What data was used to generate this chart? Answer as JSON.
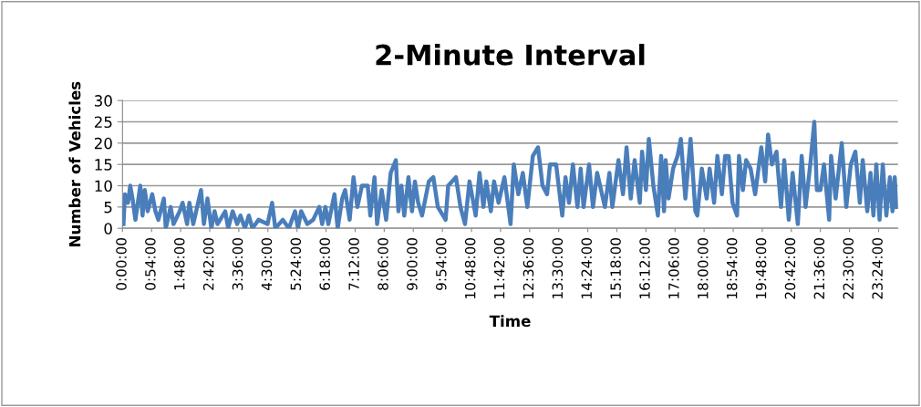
{
  "chart_data": {
    "type": "line",
    "title": "2-Minute Interval",
    "xlabel": "Time",
    "ylabel": "Number of Vehicles",
    "x": [
      0.03,
      0.075,
      0.17,
      0.24,
      0.31,
      0.4,
      0.55,
      0.62,
      0.69,
      0.78,
      0.92,
      1.02,
      1.11,
      1.28,
      1.34,
      1.49,
      1.58,
      1.77,
      1.86,
      2.0,
      2.07,
      2.19,
      2.43,
      2.52,
      2.63,
      2.75,
      2.85,
      2.94,
      3.18,
      3.27,
      3.41,
      3.55,
      3.65,
      3.79,
      3.91,
      4.02,
      4.21,
      4.49,
      4.63,
      4.73,
      4.96,
      5.15,
      5.34,
      5.43,
      5.53,
      5.72,
      5.9,
      6.09,
      6.18,
      6.28,
      6.37,
      6.56,
      6.66,
      6.8,
      6.89,
      7.03,
      7.15,
      7.27,
      7.41,
      7.59,
      7.67,
      7.8,
      7.88,
      8.02,
      8.16,
      8.3,
      8.46,
      8.54,
      8.63,
      8.72,
      8.85,
      8.96,
      9.05,
      9.15,
      9.27,
      9.48,
      9.62,
      9.76,
      10.0,
      10.08,
      10.32,
      10.46,
      10.6,
      10.74,
      10.93,
      11.05,
      11.17,
      11.26,
      11.4,
      11.5,
      11.64,
      11.82,
      12.01,
      12.11,
      12.25,
      12.39,
      12.53,
      12.7,
      12.86,
      13.0,
      13.14,
      13.23,
      13.42,
      13.61,
      13.71,
      13.82,
      13.94,
      14.08,
      14.18,
      14.27,
      14.44,
      14.56,
      14.69,
      14.93,
      15.07,
      15.16,
      15.35,
      15.49,
      15.6,
      15.73,
      15.85,
      15.96,
      16.01,
      16.08,
      16.2,
      16.29,
      16.43,
      16.57,
      16.67,
      16.76,
      16.81,
      16.9,
      17.04,
      17.18,
      17.28,
      17.42,
      17.58,
      17.73,
      17.79,
      17.93,
      18.08,
      18.17,
      18.31,
      18.41,
      18.55,
      18.65,
      18.76,
      18.88,
      19.02,
      19.08,
      19.2,
      19.3,
      19.44,
      19.58,
      19.77,
      19.89,
      19.98,
      20.1,
      20.24,
      20.38,
      20.48,
      20.62,
      20.74,
      20.9,
      21.02,
      21.14,
      21.3,
      21.41,
      21.49,
      21.6,
      21.71,
      21.87,
      21.93,
      22.07,
      22.26,
      22.4,
      22.54,
      22.68,
      22.82,
      22.91,
      23.05,
      23.15,
      23.24,
      23.33,
      23.43,
      23.53,
      23.64,
      23.75,
      23.83,
      23.9,
      23.95
    ],
    "series": [
      {
        "color": "#4a7ebb",
        "values": [
          1,
          8,
          6,
          10,
          7,
          2,
          10,
          3,
          9,
          4,
          8,
          4,
          2,
          7,
          0,
          5,
          1,
          4,
          6,
          1,
          6,
          1,
          9,
          1,
          7,
          0,
          4,
          1,
          4,
          0,
          4,
          1,
          3,
          0,
          3,
          0,
          2,
          1,
          6,
          0,
          2,
          0,
          4,
          0,
          4,
          1,
          2,
          5,
          1,
          5,
          1,
          8,
          0,
          7,
          9,
          2,
          12,
          5,
          10,
          10,
          3,
          12,
          1,
          9,
          2,
          13,
          16,
          4,
          10,
          3,
          12,
          4,
          11,
          6,
          3,
          11,
          12,
          5,
          2,
          10,
          12,
          5,
          1,
          11,
          3,
          13,
          5,
          11,
          4,
          11,
          6,
          12,
          1,
          15,
          8,
          13,
          5,
          17,
          19,
          10,
          8,
          15,
          15,
          3,
          12,
          6,
          15,
          5,
          14,
          5,
          15,
          5,
          13,
          5,
          13,
          5,
          16,
          8,
          19,
          7,
          16,
          9,
          6,
          18,
          9,
          21,
          10,
          3,
          17,
          4,
          16,
          7,
          14,
          17,
          21,
          7,
          21,
          4,
          3,
          14,
          7,
          14,
          6,
          17,
          8,
          17,
          17,
          6,
          3,
          17,
          9,
          16,
          14,
          8,
          19,
          11,
          22,
          15,
          18,
          5,
          16,
          2,
          13,
          1,
          17,
          5,
          16,
          25,
          9,
          9,
          15,
          2,
          17,
          7,
          20,
          5,
          15,
          18,
          6,
          16,
          4,
          13,
          3,
          15,
          2,
          15,
          3,
          12,
          4,
          12,
          5
        ]
      }
    ],
    "xlim": [
      0,
      24
    ],
    "ylim": [
      0,
      30
    ],
    "yticks": [
      0,
      5,
      10,
      15,
      20,
      25,
      30
    ],
    "xticks": [
      {
        "value": 0,
        "label": "0:00:00"
      },
      {
        "value": 0.9,
        "label": "0:54:00"
      },
      {
        "value": 1.8,
        "label": "1:48:00"
      },
      {
        "value": 2.7,
        "label": "2:42:00"
      },
      {
        "value": 3.6,
        "label": "3:36:00"
      },
      {
        "value": 4.5,
        "label": "4:30:00"
      },
      {
        "value": 5.4,
        "label": "5:24:00"
      },
      {
        "value": 6.3,
        "label": "6:18:00"
      },
      {
        "value": 7.2,
        "label": "7:12:00"
      },
      {
        "value": 8.1,
        "label": "8:06:00"
      },
      {
        "value": 9.0,
        "label": "9:00:00"
      },
      {
        "value": 9.9,
        "label": "9:54:00"
      },
      {
        "value": 10.8,
        "label": "10:48:00"
      },
      {
        "value": 11.7,
        "label": "11:42:00"
      },
      {
        "value": 12.6,
        "label": "12:36:00"
      },
      {
        "value": 13.5,
        "label": "13:30:00"
      },
      {
        "value": 14.4,
        "label": "14:24:00"
      },
      {
        "value": 15.3,
        "label": "15:18:00"
      },
      {
        "value": 16.2,
        "label": "16:12:00"
      },
      {
        "value": 17.1,
        "label": "17:06:00"
      },
      {
        "value": 18.0,
        "label": "18:00:00"
      },
      {
        "value": 18.9,
        "label": "18:54:00"
      },
      {
        "value": 19.8,
        "label": "19:48:00"
      },
      {
        "value": 20.7,
        "label": "20:42:00"
      },
      {
        "value": 21.6,
        "label": "21:36:00"
      },
      {
        "value": 22.5,
        "label": "22:30:00"
      },
      {
        "value": 23.4,
        "label": "23:24:00"
      }
    ],
    "grid": "y",
    "marker": "none",
    "line_style": "solid"
  }
}
